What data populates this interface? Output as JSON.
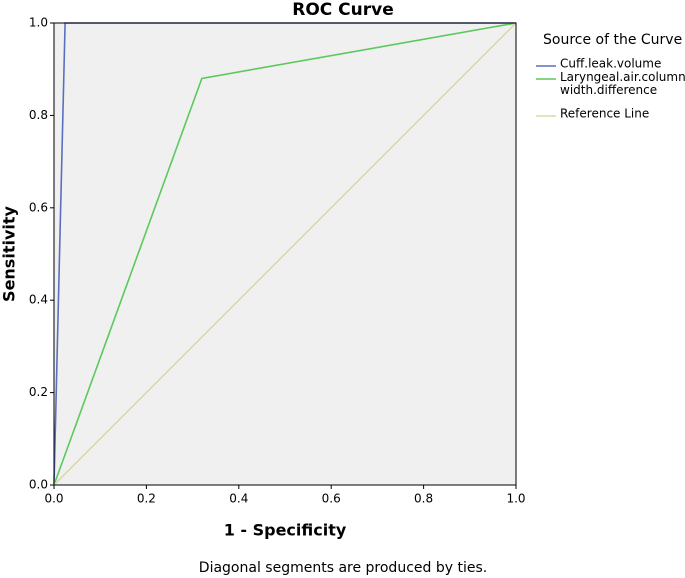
{
  "chart_data": {
    "type": "line",
    "title": "ROC Curve",
    "x_label": "1 - Specificity",
    "y_label": "Sensitivity",
    "note": "Diagonal segments are produced by ties.",
    "legend_title": "Source of the Curve",
    "legend_position": "right",
    "background": "#f0f0f0",
    "xlim": [
      0,
      1
    ],
    "ylim": [
      0,
      1
    ],
    "xticks": [
      {
        "value": 0,
        "label": "0.0"
      },
      {
        "value": 0.2,
        "label": "0.2"
      },
      {
        "value": 0.4,
        "label": "0.4"
      },
      {
        "value": 0.6,
        "label": "0.6"
      },
      {
        "value": 0.8,
        "label": "0.8"
      },
      {
        "value": 1,
        "label": "1.0"
      }
    ],
    "yticks": [
      {
        "value": 0,
        "label": "0.0"
      },
      {
        "value": 0.2,
        "label": "0.2"
      },
      {
        "value": 0.4,
        "label": "0.4"
      },
      {
        "value": 0.6,
        "label": "0.6"
      },
      {
        "value": 0.8,
        "label": "0.8"
      },
      {
        "value": 1,
        "label": "1.0"
      }
    ],
    "grid": false,
    "series": [
      {
        "name": "Cuff.leak.volume",
        "color": "#5a6fc0",
        "x": [
          0,
          0.024,
          1
        ],
        "values": [
          0,
          1,
          1
        ]
      },
      {
        "name": "Laryngeal.air.column.width.difference",
        "color": "#5cc95c",
        "x": [
          0,
          0.32,
          1
        ],
        "values": [
          0,
          0.88,
          1
        ]
      },
      {
        "name": "Reference Line",
        "color": "#dcd8a8",
        "x": [
          0,
          1
        ],
        "values": [
          0,
          1
        ]
      }
    ]
  }
}
